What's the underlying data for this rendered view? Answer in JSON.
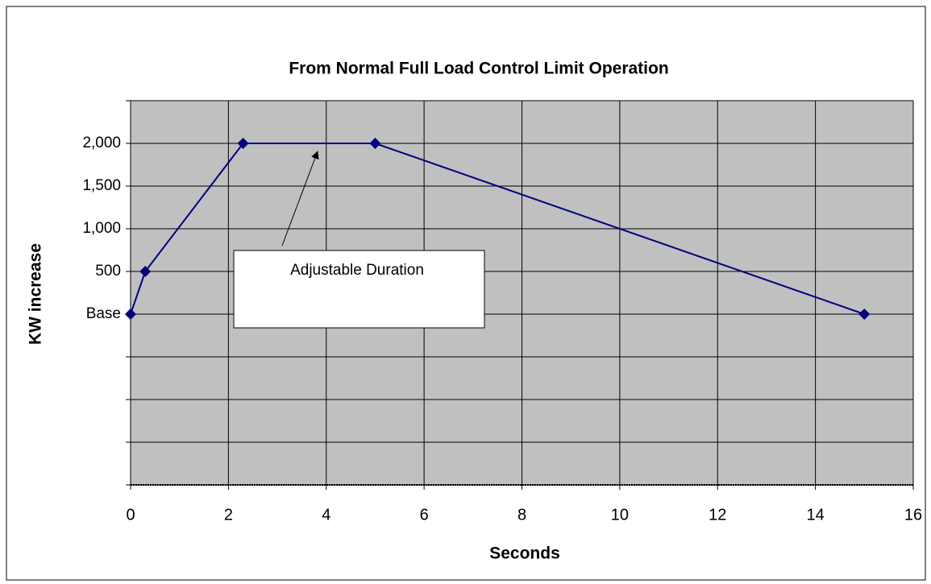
{
  "chart_data": {
    "type": "line",
    "title": "From Normal Full Load Control Limit Operation",
    "x_label": "Seconds",
    "y_label": "KW increase",
    "annotation": "Adjustable Duration",
    "series": [
      {
        "color": "#000080",
        "x": [
          0,
          0.3,
          2.3,
          5,
          15
        ],
        "values": [
          0,
          500,
          2000,
          2000,
          0
        ]
      }
    ],
    "xlim": [
      0,
      16
    ],
    "xticks": [
      0,
      2,
      4,
      6,
      8,
      10,
      12,
      14,
      16
    ],
    "ylim": [
      -2000,
      2500
    ],
    "yticks": [
      {
        "value": 0,
        "label": "Base"
      },
      500,
      {
        "value": 1000,
        "label": "1,000"
      },
      {
        "value": 1500,
        "label": "1,500"
      },
      {
        "value": 2000,
        "label": "2,000"
      }
    ],
    "y_gridlines": [
      -2000,
      -1500,
      -1000,
      -500,
      2500
    ],
    "grid": true,
    "plot_background": "#c0c0c0"
  }
}
